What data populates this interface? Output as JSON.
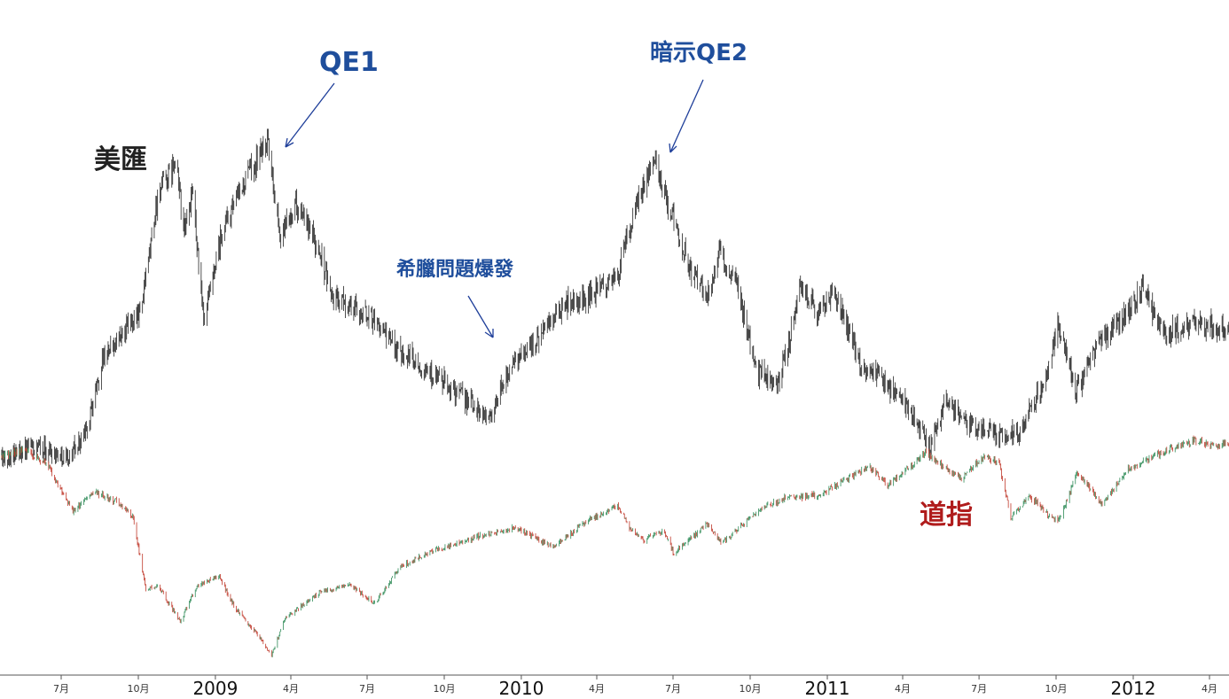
{
  "chart_data": {
    "type": "line",
    "style": "candlestick-style price series (daily bars)",
    "title": "",
    "xlabel": "",
    "ylabel": "",
    "x_ticks": [
      {
        "label": "7月",
        "kind": "month",
        "date": "2008-07"
      },
      {
        "label": "10月",
        "kind": "month",
        "date": "2008-10"
      },
      {
        "label": "2009",
        "kind": "year",
        "date": "2009-01"
      },
      {
        "label": "4月",
        "kind": "month",
        "date": "2009-04"
      },
      {
        "label": "7月",
        "kind": "month",
        "date": "2009-07"
      },
      {
        "label": "10月",
        "kind": "month",
        "date": "2009-10"
      },
      {
        "label": "2010",
        "kind": "year",
        "date": "2010-01"
      },
      {
        "label": "4月",
        "kind": "month",
        "date": "2010-04"
      },
      {
        "label": "7月",
        "kind": "month",
        "date": "2010-07"
      },
      {
        "label": "10月",
        "kind": "month",
        "date": "2010-10"
      },
      {
        "label": "2011",
        "kind": "year",
        "date": "2011-01"
      },
      {
        "label": "4月",
        "kind": "month",
        "date": "2011-04"
      },
      {
        "label": "7月",
        "kind": "month",
        "date": "2011-07"
      },
      {
        "label": "10月",
        "kind": "month",
        "date": "2011-10"
      },
      {
        "label": "2012",
        "kind": "year",
        "date": "2012-01"
      },
      {
        "label": "4月",
        "kind": "month",
        "date": "2012-04"
      }
    ],
    "series": [
      {
        "name": "美匯",
        "color": "#222222",
        "points": [
          [
            "2008-04-15",
            72.4
          ],
          [
            "2008-05-20",
            73.0
          ],
          [
            "2008-06-15",
            72.9
          ],
          [
            "2008-07-10",
            72.5
          ],
          [
            "2008-08-01",
            74.0
          ],
          [
            "2008-08-20",
            77.8
          ],
          [
            "2008-09-15",
            79.2
          ],
          [
            "2008-10-05",
            80.5
          ],
          [
            "2008-10-25",
            86.5
          ],
          [
            "2008-11-15",
            88.0
          ],
          [
            "2008-11-25",
            84.5
          ],
          [
            "2008-12-05",
            86.5
          ],
          [
            "2008-12-18",
            79.5
          ],
          [
            "2009-01-10",
            84.5
          ],
          [
            "2009-02-10",
            87.5
          ],
          [
            "2009-03-04",
            89.2
          ],
          [
            "2009-03-20",
            84.0
          ],
          [
            "2009-04-05",
            86.0
          ],
          [
            "2009-05-05",
            83.5
          ],
          [
            "2009-05-20",
            81.0
          ],
          [
            "2009-06-10",
            80.5
          ],
          [
            "2009-07-05",
            80.0
          ],
          [
            "2009-08-01",
            78.5
          ],
          [
            "2009-09-01",
            77.5
          ],
          [
            "2009-10-05",
            76.3
          ],
          [
            "2009-11-25",
            74.6
          ],
          [
            "2009-12-20",
            77.5
          ],
          [
            "2010-01-25",
            79.0
          ],
          [
            "2010-02-20",
            80.5
          ],
          [
            "2010-03-20",
            81.0
          ],
          [
            "2010-04-25",
            82.0
          ],
          [
            "2010-05-20",
            86.0
          ],
          [
            "2010-06-07",
            88.4
          ],
          [
            "2010-06-25",
            86.0
          ],
          [
            "2010-07-20",
            82.5
          ],
          [
            "2010-08-10",
            81.0
          ],
          [
            "2010-08-25",
            83.3
          ],
          [
            "2010-09-15",
            81.5
          ],
          [
            "2010-10-10",
            77.0
          ],
          [
            "2010-11-04",
            76.3
          ],
          [
            "2010-11-30",
            81.5
          ],
          [
            "2010-12-20",
            80.3
          ],
          [
            "2011-01-10",
            81.2
          ],
          [
            "2011-02-10",
            77.5
          ],
          [
            "2011-03-10",
            76.5
          ],
          [
            "2011-04-10",
            75.0
          ],
          [
            "2011-05-03",
            73.0
          ],
          [
            "2011-05-25",
            75.6
          ],
          [
            "2011-06-15",
            74.3
          ],
          [
            "2011-07-20",
            74.0
          ],
          [
            "2011-08-01",
            73.5
          ],
          [
            "2011-08-20",
            74.0
          ],
          [
            "2011-09-15",
            76.5
          ],
          [
            "2011-10-04",
            79.5
          ],
          [
            "2011-10-25",
            76.0
          ],
          [
            "2011-11-20",
            78.5
          ],
          [
            "2011-12-20",
            80.0
          ],
          [
            "2012-01-13",
            81.5
          ],
          [
            "2012-02-05",
            79.0
          ],
          [
            "2012-03-10",
            79.6
          ],
          [
            "2012-04-05",
            79.5
          ],
          [
            "2012-04-30",
            79.0
          ]
        ]
      },
      {
        "name": "道指",
        "color": "#2e8b57",
        "points": [
          [
            "2008-04-15",
            12700
          ],
          [
            "2008-05-20",
            12900
          ],
          [
            "2008-06-15",
            12400
          ],
          [
            "2008-07-15",
            11000
          ],
          [
            "2008-08-10",
            11600
          ],
          [
            "2008-09-05",
            11300
          ],
          [
            "2008-09-25",
            10800
          ],
          [
            "2008-10-10",
            8600
          ],
          [
            "2008-10-25",
            8700
          ],
          [
            "2008-11-20",
            7600
          ],
          [
            "2008-12-10",
            8700
          ],
          [
            "2009-01-05",
            9000
          ],
          [
            "2009-01-25",
            8000
          ],
          [
            "2009-02-20",
            7200
          ],
          [
            "2009-03-09",
            6550
          ],
          [
            "2009-03-25",
            7700
          ],
          [
            "2009-05-05",
            8500
          ],
          [
            "2009-06-10",
            8750
          ],
          [
            "2009-07-10",
            8150
          ],
          [
            "2009-08-10",
            9300
          ],
          [
            "2009-09-15",
            9750
          ],
          [
            "2009-10-20",
            10050
          ],
          [
            "2009-11-20",
            10300
          ],
          [
            "2009-12-25",
            10500
          ],
          [
            "2010-02-08",
            9900
          ],
          [
            "2010-03-15",
            10600
          ],
          [
            "2010-04-26",
            11200
          ],
          [
            "2010-05-10",
            10500
          ],
          [
            "2010-05-25",
            10100
          ],
          [
            "2010-06-20",
            10400
          ],
          [
            "2010-07-02",
            9700
          ],
          [
            "2010-08-10",
            10600
          ],
          [
            "2010-08-28",
            10000
          ],
          [
            "2010-10-10",
            11000
          ],
          [
            "2010-11-10",
            11400
          ],
          [
            "2010-12-20",
            11500
          ],
          [
            "2011-01-25",
            12000
          ],
          [
            "2011-02-20",
            12400
          ],
          [
            "2011-03-15",
            11800
          ],
          [
            "2011-04-28",
            12800
          ],
          [
            "2011-06-10",
            12000
          ],
          [
            "2011-07-06",
            12700
          ],
          [
            "2011-07-25",
            12500
          ],
          [
            "2011-08-08",
            10800
          ],
          [
            "2011-08-30",
            11500
          ],
          [
            "2011-09-25",
            10800
          ],
          [
            "2011-10-04",
            10700
          ],
          [
            "2011-10-27",
            12200
          ],
          [
            "2011-11-25",
            11200
          ],
          [
            "2011-12-25",
            12300
          ],
          [
            "2012-01-25",
            12700
          ],
          [
            "2012-03-15",
            13200
          ],
          [
            "2012-04-10",
            13000
          ],
          [
            "2012-04-30",
            13200
          ]
        ]
      }
    ],
    "annotations": [
      {
        "text": "QE1",
        "date": "2009-03-18",
        "series": "美匯"
      },
      {
        "text": "希臘問題爆發",
        "date": "2009-12-10",
        "series": "美匯"
      },
      {
        "text": "暗示QE2",
        "date": "2010-06-10",
        "series": "美匯"
      }
    ],
    "grid": false,
    "legend": "none",
    "series_labels": [
      {
        "text": "美匯",
        "series": "美匯"
      },
      {
        "text": "道指",
        "series": "道指"
      }
    ]
  },
  "colors": {
    "usd_candle": "#222222",
    "dow_up": "#2e8b57",
    "dow_down": "#c0392b",
    "annotation": "#1f4e9c",
    "dow_label": "#b01c1c"
  }
}
